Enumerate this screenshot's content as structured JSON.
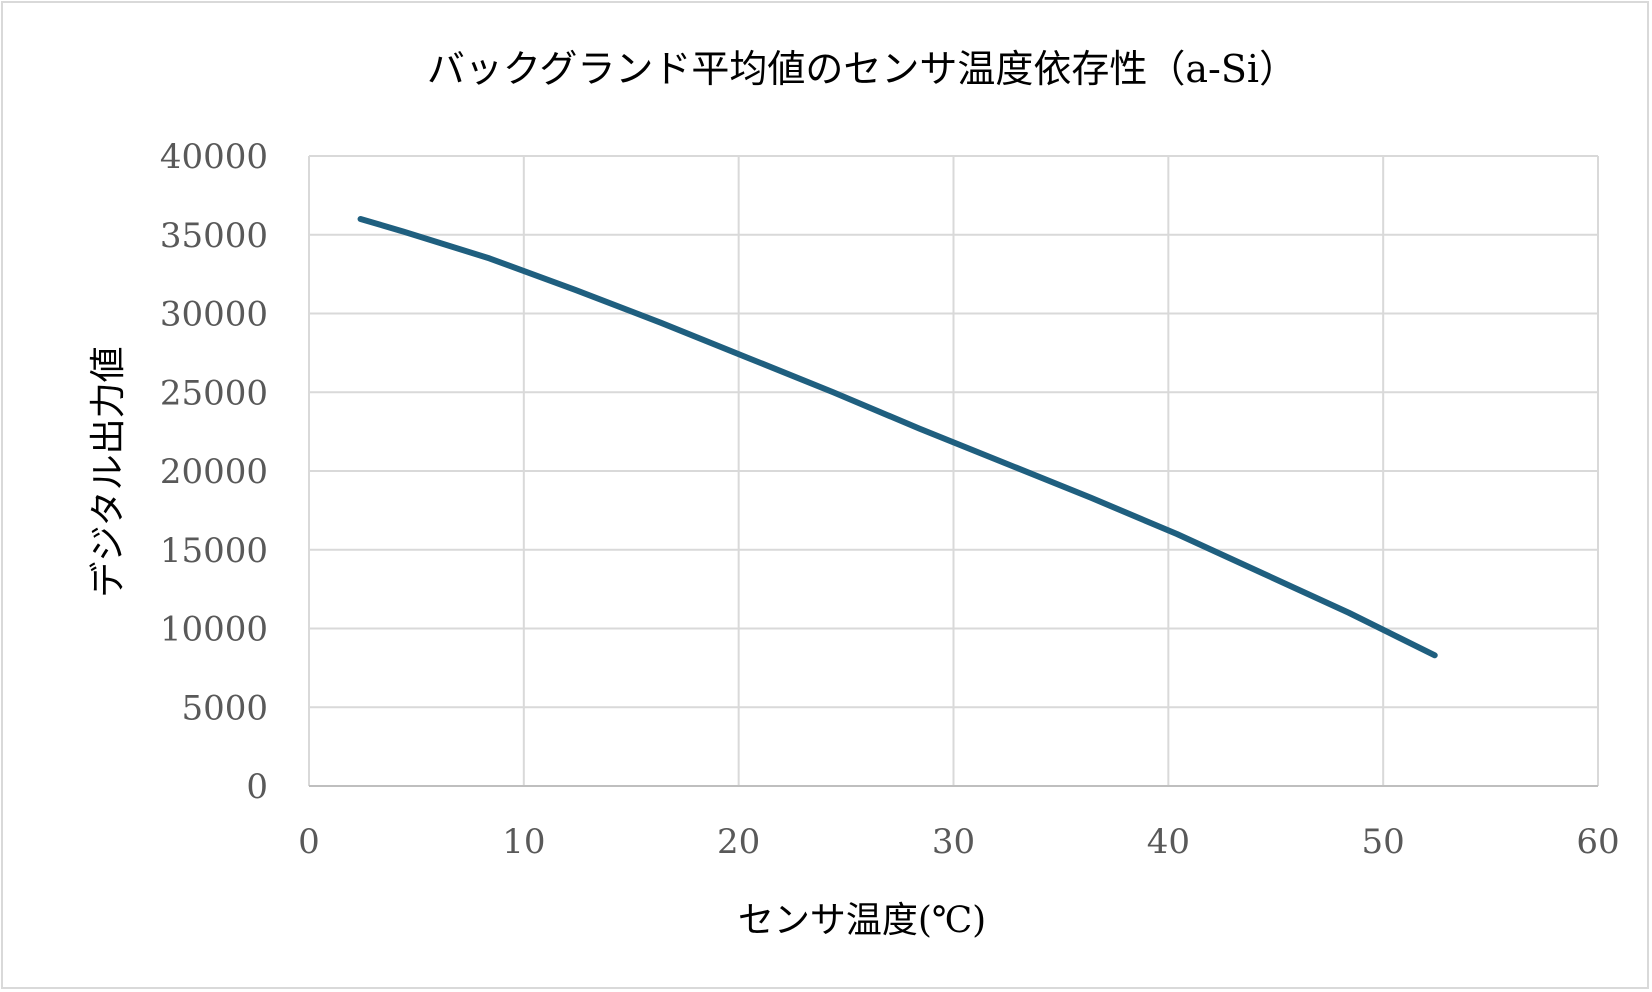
{
  "chart_data": {
    "type": "line",
    "title": "バックグランド平均値のセンサ温度依存性（a-Si）",
    "xlabel": "センサ温度(℃)",
    "ylabel": "デジタル出力値",
    "xlim": [
      0,
      60
    ],
    "ylim": [
      0,
      40000
    ],
    "x_ticks": [
      "0",
      "10",
      "20",
      "30",
      "40",
      "50",
      "60"
    ],
    "y_ticks": [
      "0",
      "5000",
      "10000",
      "15000",
      "20000",
      "25000",
      "30000",
      "35000",
      "40000"
    ],
    "grid": true,
    "legend": "none",
    "series": [
      {
        "color": "#1f5f7f",
        "x": [
          2.4,
          4.4,
          8.4,
          12.4,
          16.4,
          20.4,
          24.4,
          28.4,
          32.4,
          36.4,
          40.4,
          44.4,
          48.4,
          52.4
        ],
        "y": [
          36000,
          35200,
          33500,
          31500,
          29400,
          27200,
          25000,
          22700,
          20500,
          18300,
          16000,
          13500,
          11000,
          8300
        ]
      }
    ]
  }
}
